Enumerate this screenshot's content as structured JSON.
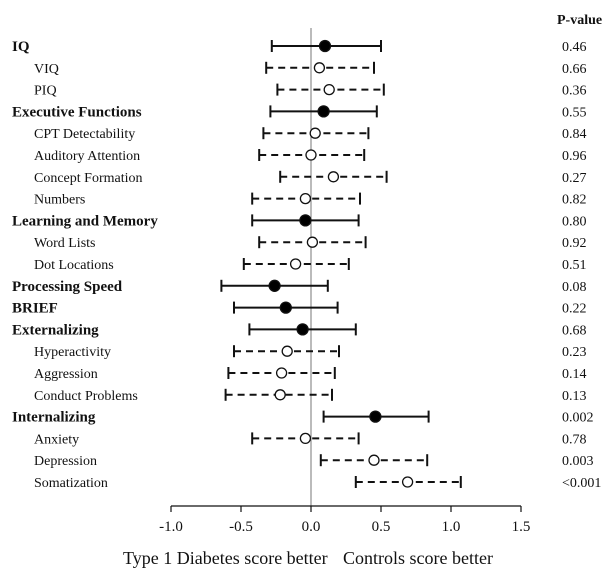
{
  "chart_data": {
    "type": "forest",
    "pvalue_header": "P-value",
    "xlim": [
      -1.0,
      1.5
    ],
    "xticks": [
      "-1.0",
      "-0.5",
      "0.0",
      "0.5",
      "1.0",
      "1.5"
    ],
    "xtick_values": [
      -1.0,
      -0.5,
      0.0,
      0.5,
      1.0,
      1.5
    ],
    "reference_line": 0.0,
    "direction_labels": {
      "left": "Type 1 Diabetes score better",
      "right": "Controls score better"
    },
    "rows": [
      {
        "label": "IQ",
        "level": "main",
        "estimate": 0.1,
        "ci": [
          -0.28,
          0.5
        ],
        "p": "0.46"
      },
      {
        "label": "VIQ",
        "level": "sub",
        "estimate": 0.06,
        "ci": [
          -0.32,
          0.45
        ],
        "p": "0.66"
      },
      {
        "label": "PIQ",
        "level": "sub",
        "estimate": 0.13,
        "ci": [
          -0.24,
          0.52
        ],
        "p": "0.36"
      },
      {
        "label": "Executive Functions",
        "level": "main",
        "estimate": 0.09,
        "ci": [
          -0.29,
          0.47
        ],
        "p": "0.55"
      },
      {
        "label": "CPT Detectability",
        "level": "sub",
        "estimate": 0.03,
        "ci": [
          -0.34,
          0.41
        ],
        "p": "0.84"
      },
      {
        "label": "Auditory Attention",
        "level": "sub",
        "estimate": 0.0,
        "ci": [
          -0.37,
          0.38
        ],
        "p": "0.96"
      },
      {
        "label": "Concept Formation",
        "level": "sub",
        "estimate": 0.16,
        "ci": [
          -0.22,
          0.54
        ],
        "p": "0.27"
      },
      {
        "label": "Numbers",
        "level": "sub",
        "estimate": -0.04,
        "ci": [
          -0.42,
          0.35
        ],
        "p": "0.82"
      },
      {
        "label": "Learning and Memory",
        "level": "main",
        "estimate": -0.04,
        "ci": [
          -0.42,
          0.34
        ],
        "p": "0.80"
      },
      {
        "label": "Word Lists",
        "level": "sub",
        "estimate": 0.01,
        "ci": [
          -0.37,
          0.39
        ],
        "p": "0.92"
      },
      {
        "label": "Dot Locations",
        "level": "sub",
        "estimate": -0.11,
        "ci": [
          -0.48,
          0.27
        ],
        "p": "0.51"
      },
      {
        "label": "Processing Speed",
        "level": "main",
        "estimate": -0.26,
        "ci": [
          -0.64,
          0.12
        ],
        "p": "0.08"
      },
      {
        "label": "BRIEF",
        "level": "main",
        "estimate": -0.18,
        "ci": [
          -0.55,
          0.19
        ],
        "p": "0.22"
      },
      {
        "label": "Externalizing",
        "level": "main",
        "estimate": -0.06,
        "ci": [
          -0.44,
          0.32
        ],
        "p": "0.68"
      },
      {
        "label": "Hyperactivity",
        "level": "sub",
        "estimate": -0.17,
        "ci": [
          -0.55,
          0.2
        ],
        "p": "0.23"
      },
      {
        "label": "Aggression",
        "level": "sub",
        "estimate": -0.21,
        "ci": [
          -0.59,
          0.17
        ],
        "p": "0.14"
      },
      {
        "label": "Conduct Problems",
        "level": "sub",
        "estimate": -0.22,
        "ci": [
          -0.61,
          0.15
        ],
        "p": "0.13"
      },
      {
        "label": "Internalizing",
        "level": "main",
        "estimate": 0.46,
        "ci": [
          0.09,
          0.84
        ],
        "p": "0.002"
      },
      {
        "label": "Anxiety",
        "level": "sub",
        "estimate": -0.04,
        "ci": [
          -0.42,
          0.34
        ],
        "p": "0.78"
      },
      {
        "label": "Depression",
        "level": "sub",
        "estimate": 0.45,
        "ci": [
          0.07,
          0.83
        ],
        "p": "0.003"
      },
      {
        "label": "Somatization",
        "level": "sub",
        "estimate": 0.69,
        "ci": [
          0.32,
          1.07
        ],
        "p": "<0.001"
      }
    ]
  }
}
